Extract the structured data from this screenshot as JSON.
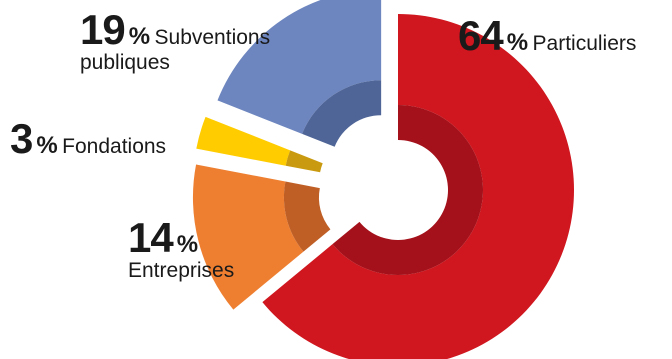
{
  "chart_data": {
    "type": "pie",
    "style": "exploded donut",
    "slices": [
      {
        "label": "Particuliers",
        "value": 64,
        "color": "#d0161e",
        "inner_color": "#a4111a",
        "explode": 0
      },
      {
        "label": "Entreprises",
        "value": 14,
        "color": "#ee7f31",
        "inner_color": "#bf5f26",
        "explode": 1
      },
      {
        "label": "Fondations",
        "value": 3,
        "color": "#ffcc00",
        "inner_color": "#c99a10",
        "explode": 1
      },
      {
        "label": "Subventions publiques",
        "value": 19,
        "color": "#6d86bf",
        "inner_color": "#4f6597",
        "explode": 1
      }
    ],
    "percent_sign": "%",
    "labels": {
      "particuliers": {
        "value": "64",
        "line1": "Particuliers"
      },
      "entreprises": {
        "value": "14",
        "line1": "Entreprises"
      },
      "fondations": {
        "value": "3",
        "line1": "Fondations"
      },
      "subventions": {
        "value": "19",
        "line1": "Subventions",
        "line2": "publiques"
      }
    }
  }
}
